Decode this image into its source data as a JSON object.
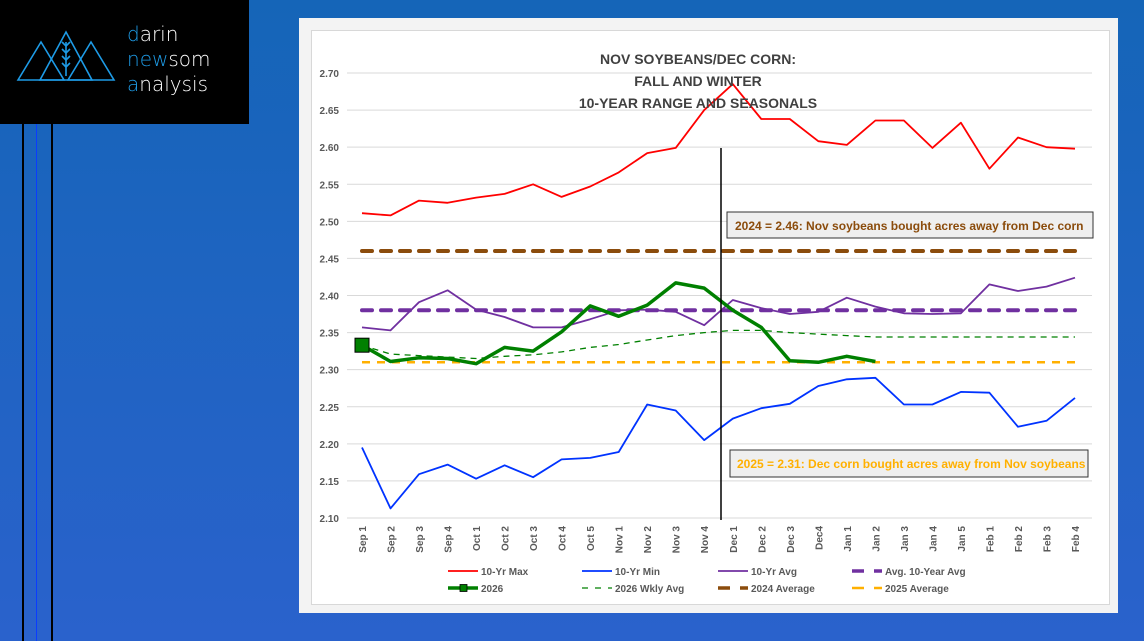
{
  "brand": {
    "line1_first": "d",
    "line1_rest": "arin",
    "line2_first": "n",
    "line2_mid": "ew",
    "line2_rest": "som",
    "line3_first": "a",
    "line3_rest": "nalysis"
  },
  "chart_data": {
    "type": "line",
    "title": [
      "NOV SOYBEANS/DEC CORN:",
      "FALL AND WINTER",
      "10-YEAR RANGE AND SEASONALS"
    ],
    "xlabel": "",
    "ylabel": "",
    "ylim": [
      2.1,
      2.7
    ],
    "yticks": [
      "2.70",
      "2.65",
      "2.60",
      "2.55",
      "2.50",
      "2.45",
      "2.40",
      "2.35",
      "2.30",
      "2.25",
      "2.20",
      "2.15",
      "2.10"
    ],
    "grid": true,
    "legend_position": "bottom",
    "categories": [
      "Sep 1",
      "Sep 2",
      "Sep 3",
      "Sep 4",
      "Oct 1",
      "Oct 2",
      "Oct 3",
      "Oct 4",
      "Oct 5",
      "Nov 1",
      "Nov 2",
      "Nov 3",
      "Nov 4",
      "Dec 1",
      "Dec 2",
      "Dec 3",
      "Dec4",
      "Jan 1",
      "Jan 2",
      "Jan 3",
      "Jan 4",
      "Jan 5",
      "Feb 1",
      "Feb 2",
      "Feb 3",
      "Feb 4"
    ],
    "vertical_marker_after": "Nov 4",
    "series": [
      {
        "name": "10-Yr Max",
        "color": "#ff0000",
        "style": "solid",
        "values": [
          2.511,
          2.508,
          2.528,
          2.525,
          2.532,
          2.537,
          2.55,
          2.533,
          2.547,
          2.566,
          2.592,
          2.599,
          2.65,
          2.685,
          2.638,
          2.638,
          2.608,
          2.603,
          2.636,
          2.636,
          2.599,
          2.633,
          2.571,
          2.613,
          2.6,
          2.598
        ]
      },
      {
        "name": "10-Yr Min",
        "color": "#0033ff",
        "style": "solid",
        "values": [
          2.195,
          2.113,
          2.159,
          2.172,
          2.153,
          2.171,
          2.155,
          2.179,
          2.181,
          2.189,
          2.253,
          2.245,
          2.205,
          2.234,
          2.248,
          2.254,
          2.278,
          2.287,
          2.289,
          2.253,
          2.253,
          2.27,
          2.269,
          2.223,
          2.231,
          2.262
        ]
      },
      {
        "name": "10-Yr Avg",
        "color": "#7030a0",
        "style": "solid",
        "values": [
          2.357,
          2.353,
          2.391,
          2.407,
          2.381,
          2.371,
          2.357,
          2.357,
          2.368,
          2.38,
          2.381,
          2.378,
          2.36,
          2.394,
          2.383,
          2.375,
          2.378,
          2.397,
          2.385,
          2.376,
          2.375,
          2.376,
          2.415,
          2.406,
          2.412,
          2.424
        ]
      },
      {
        "name": "Avg. 10-Year Avg",
        "color": "#7030a0",
        "style": "dash-thick",
        "values": [
          2.38,
          2.38,
          2.38,
          2.38,
          2.38,
          2.38,
          2.38,
          2.38,
          2.38,
          2.38,
          2.38,
          2.38,
          2.38,
          2.38,
          2.38,
          2.38,
          2.38,
          2.38,
          2.38,
          2.38,
          2.38,
          2.38,
          2.38,
          2.38,
          2.38,
          2.38
        ]
      },
      {
        "name": "2026",
        "color": "#008000",
        "style": "solid-thick-marker",
        "values": [
          2.333,
          2.311,
          2.316,
          2.315,
          2.308,
          2.33,
          2.325,
          2.351,
          2.386,
          2.372,
          2.387,
          2.417,
          2.41,
          2.38,
          2.357,
          2.312,
          2.31,
          2.318,
          2.311,
          null,
          null,
          null,
          null,
          null,
          null,
          null
        ]
      },
      {
        "name": "2026 Wkly Avg",
        "color": "#008000",
        "style": "dash-thin",
        "values": [
          2.333,
          2.321,
          2.319,
          2.317,
          2.315,
          2.318,
          2.32,
          2.324,
          2.33,
          2.334,
          2.34,
          2.346,
          2.35,
          2.353,
          2.353,
          2.35,
          2.348,
          2.346,
          2.344,
          2.344,
          2.344,
          2.344,
          2.344,
          2.344,
          2.344,
          2.344
        ]
      },
      {
        "name": "2024 Average",
        "color": "#8b4c0c",
        "style": "dash-thick",
        "values": [
          2.46,
          2.46,
          2.46,
          2.46,
          2.46,
          2.46,
          2.46,
          2.46,
          2.46,
          2.46,
          2.46,
          2.46,
          2.46,
          2.46,
          2.46,
          2.46,
          2.46,
          2.46,
          2.46,
          2.46,
          2.46,
          2.46,
          2.46,
          2.46,
          2.46,
          2.46
        ]
      },
      {
        "name": "2025 Average",
        "color": "#ffb000",
        "style": "dash-medium",
        "values": [
          2.31,
          2.31,
          2.31,
          2.31,
          2.31,
          2.31,
          2.31,
          2.31,
          2.31,
          2.31,
          2.31,
          2.31,
          2.31,
          2.31,
          2.31,
          2.31,
          2.31,
          2.31,
          2.31,
          2.31,
          2.31,
          2.31,
          2.31,
          2.31,
          2.31,
          2.31
        ]
      }
    ],
    "annotations": [
      {
        "text": "2024 = 2.46: Nov soybeans bought acres away from Dec corn",
        "color": "#8b4c0c"
      },
      {
        "text": "2025 = 2.31: Dec corn bought acres away from Nov soybeans",
        "color": "#ffb000"
      }
    ],
    "legend": [
      [
        "10-Yr Max",
        "10-Yr Min",
        "10-Yr Avg",
        "Avg. 10-Year Avg"
      ],
      [
        "2026",
        "2026 Wkly Avg",
        "2024 Average",
        "2025 Average"
      ]
    ]
  }
}
